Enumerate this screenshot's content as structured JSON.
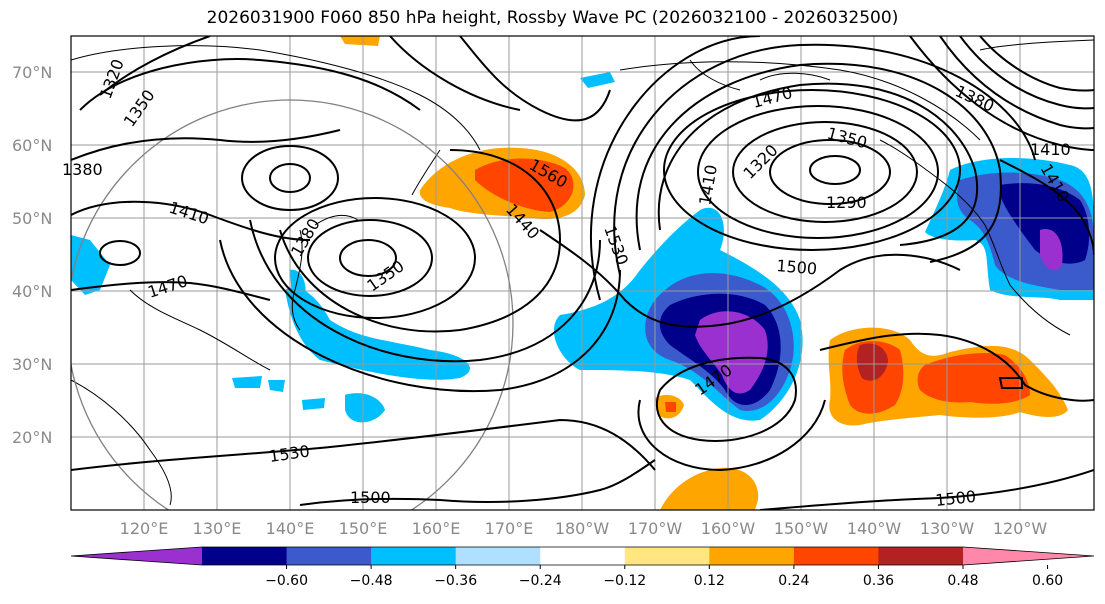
{
  "title": "2026031900 F060 850 hPa height, Rossby Wave PC (2026032100 - 2026032500)",
  "lat_labels": [
    "70°N",
    "60°N",
    "50°N",
    "40°N",
    "30°N",
    "20°N"
  ],
  "lon_labels": [
    "120°E",
    "130°E",
    "140°E",
    "150°E",
    "160°E",
    "170°E",
    "180°W",
    "170°W",
    "160°W",
    "150°W",
    "140°W",
    "130°W",
    "120°W"
  ],
  "contour_labels": [
    "1320",
    "1350",
    "1380",
    "1410",
    "1470",
    "1380",
    "1350",
    "1560",
    "1440",
    "1530",
    "1470",
    "1350",
    "1320",
    "1290",
    "1410",
    "1410",
    "1500",
    "1470",
    "1530",
    "1500",
    "1500",
    "1380",
    "1410"
  ],
  "colorbar": {
    "ticks": [
      "−0.60",
      "−0.48",
      "−0.36",
      "−0.24",
      "−0.12",
      "0.12",
      "0.24",
      "0.36",
      "0.48",
      "0.60"
    ],
    "colors": [
      "#9b30d0",
      "#00008b",
      "#3b5bcc",
      "#00bfff",
      "#b0e0ff",
      "#ffffff",
      "#ffe680",
      "#ffa500",
      "#ff4500",
      "#b22222",
      "#ff88aa"
    ]
  }
}
